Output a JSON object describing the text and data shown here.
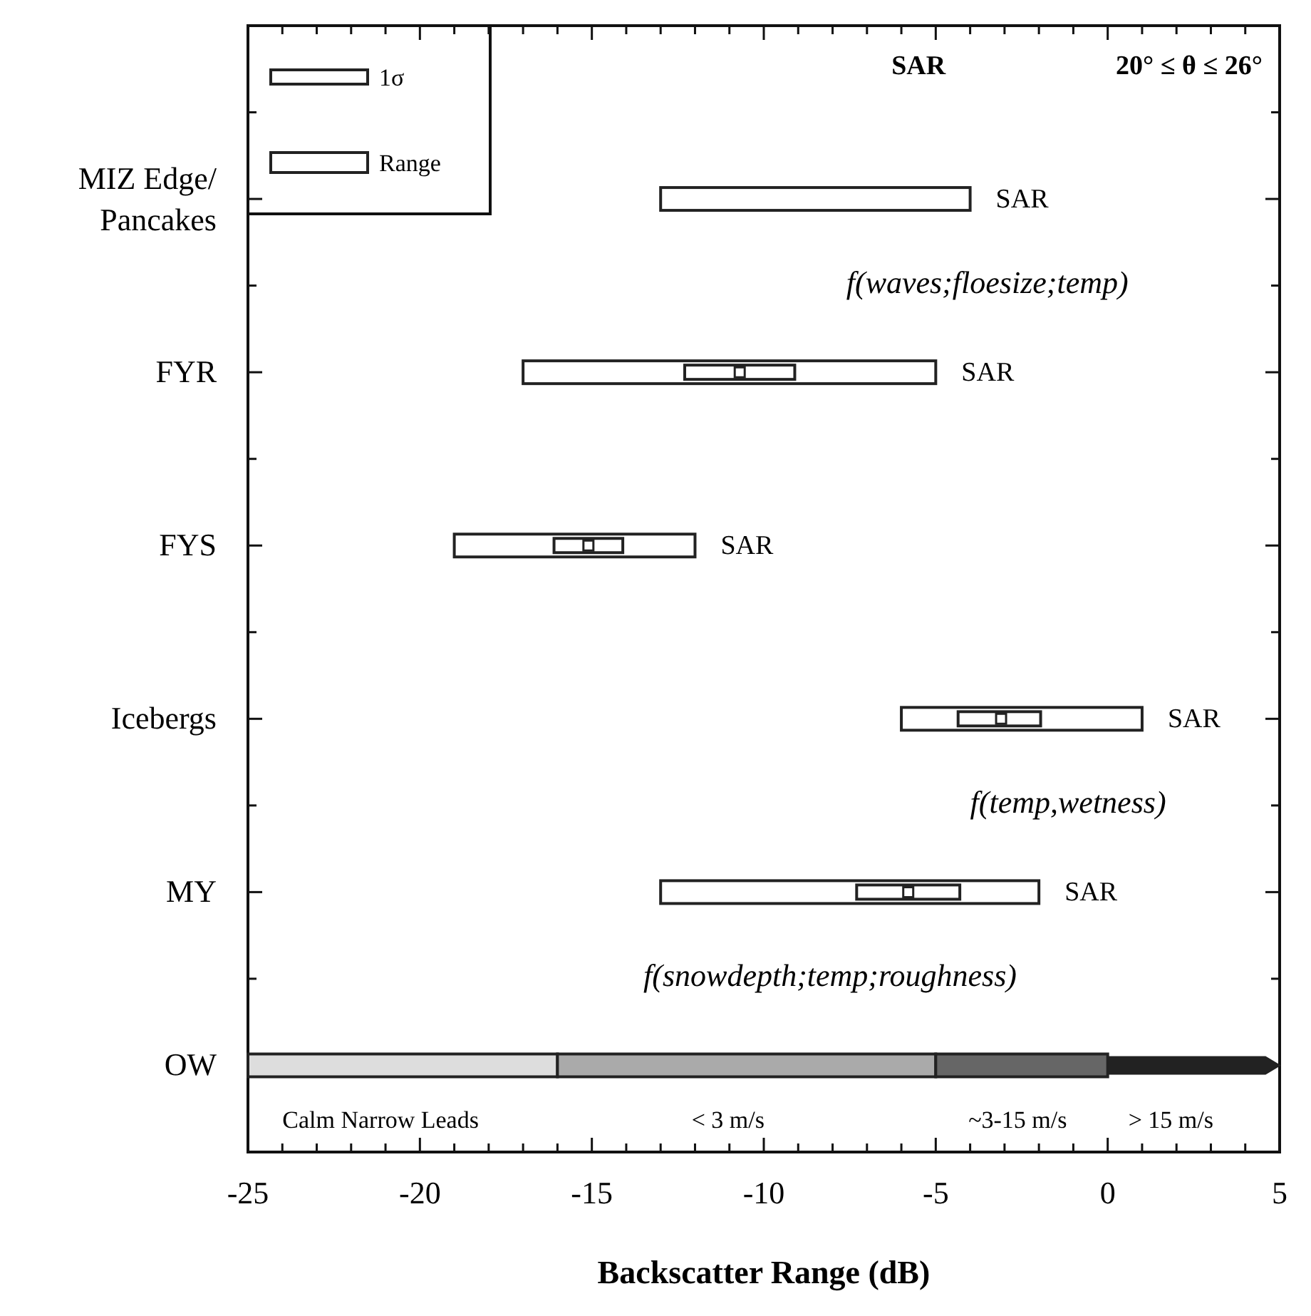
{
  "chart_data": {
    "type": "bar",
    "orientation": "horizontal",
    "title": "SAR",
    "xlabel": "Backscatter Range (dB)",
    "categories": [
      "MIZ Edge/\nPancakes",
      "FYR",
      "FYS",
      "Icebergs",
      "MY",
      "OW"
    ],
    "series": [
      {
        "name": "Range",
        "color": "#222222",
        "base": [
          -13,
          -17,
          -19,
          -6,
          -13,
          null
        ],
        "values": [
          9,
          12,
          7,
          7,
          11,
          null
        ],
        "value_labels": [
          "SAR",
          "SAR",
          "SAR",
          "SAR",
          "SAR",
          null
        ]
      },
      {
        "name": "1σ",
        "color": "#222222",
        "base": [
          null,
          -12.3,
          -16.1,
          -4.35,
          -7.3,
          null
        ],
        "values": [
          null,
          3.2,
          2.0,
          2.4,
          3.0,
          null
        ]
      },
      {
        "type": "scatter",
        "color": "#222222",
        "marker": "square",
        "x": [
          "FYR",
          "FYS",
          "Icebergs",
          "MY"
        ],
        "values": [
          -10.7,
          -15.1,
          -3.1,
          -5.8
        ]
      },
      {
        "type": "bar",
        "color": "#dddddd",
        "base": [
          null,
          null,
          null,
          null,
          null,
          -25
        ],
        "values": [
          null,
          null,
          null,
          null,
          null,
          9
        ]
      },
      {
        "type": "bar",
        "color": "#aaaaaa",
        "base": [
          null,
          null,
          null,
          null,
          null,
          -16
        ],
        "values": [
          null,
          null,
          null,
          null,
          null,
          11
        ]
      },
      {
        "type": "bar",
        "color": "#666666",
        "base": [
          null,
          null,
          null,
          null,
          null,
          -5
        ],
        "values": [
          null,
          null,
          null,
          null,
          null,
          5
        ]
      },
      {
        "type": "bar",
        "color": "#222222",
        "base": [
          null,
          null,
          null,
          null,
          null,
          0
        ],
        "values": [
          null,
          null,
          null,
          null,
          null,
          5
        ]
      }
    ],
    "xlim": [
      -25,
      5
    ],
    "xticks": [
      -25,
      {
        "value": -24,
        "label": null
      },
      {
        "value": -23,
        "label": null
      },
      {
        "value": -22,
        "label": null
      },
      {
        "value": -21,
        "label": null
      },
      -20,
      {
        "value": -19,
        "label": null
      },
      {
        "value": -18,
        "label": null
      },
      {
        "value": -17,
        "label": null
      },
      {
        "value": -16,
        "label": null
      },
      -15,
      {
        "value": -14,
        "label": null
      },
      {
        "value": -13,
        "label": null
      },
      {
        "value": -12,
        "label": null
      },
      {
        "value": -11,
        "label": null
      },
      -10,
      {
        "value": -9,
        "label": null
      },
      {
        "value": -8,
        "label": null
      },
      {
        "value": -7,
        "label": null
      },
      {
        "value": -6,
        "label": null
      },
      -5,
      {
        "value": -4,
        "label": null
      },
      {
        "value": -3,
        "label": null
      },
      {
        "value": -2,
        "label": null
      },
      {
        "value": -1,
        "label": null
      },
      0,
      {
        "value": 1,
        "label": null
      },
      {
        "value": 2,
        "label": null
      },
      {
        "value": 3,
        "label": null
      },
      {
        "value": 4,
        "label": null
      },
      5
    ],
    "legend": "top left",
    "grid": false,
    "annotations": [
      "20° ≤  θ ≤ 26°",
      "f(waves;floesize;temp)",
      "f(temp,wetness)",
      "f(snowdepth;temp;roughness)",
      "Calm Narrow Leads",
      "< 3 m/s",
      "~3-15 m/s",
      "> 15 m/s"
    ]
  }
}
